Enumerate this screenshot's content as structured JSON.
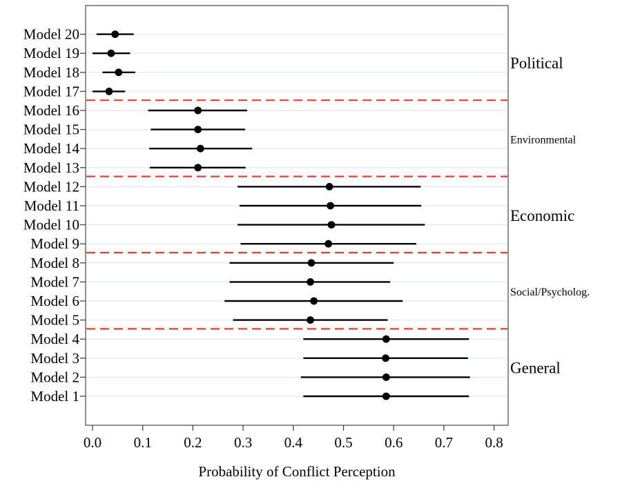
{
  "chart_data": {
    "type": "forest",
    "xlabel": "Probability of Conflict Perception",
    "ylabel": "",
    "title": "",
    "xlim": [
      -0.02,
      0.82
    ],
    "xticks": [
      "0.0",
      "0.1",
      "0.2",
      "0.3",
      "0.4",
      "0.5",
      "0.6",
      "0.7",
      "0.8"
    ],
    "xtick_values": [
      0.0,
      0.1,
      0.2,
      0.3,
      0.4,
      0.5,
      0.6,
      0.7,
      0.8
    ],
    "grid": "horizontal",
    "models": [
      {
        "label": "Model 1",
        "estimate": 0.585,
        "low": 0.42,
        "high": 0.75
      },
      {
        "label": "Model 2",
        "estimate": 0.585,
        "low": 0.415,
        "high": 0.752
      },
      {
        "label": "Model 3",
        "estimate": 0.584,
        "low": 0.42,
        "high": 0.748
      },
      {
        "label": "Model 4",
        "estimate": 0.585,
        "low": 0.42,
        "high": 0.75
      },
      {
        "label": "Model 5",
        "estimate": 0.434,
        "low": 0.28,
        "high": 0.588
      },
      {
        "label": "Model 6",
        "estimate": 0.441,
        "low": 0.263,
        "high": 0.618
      },
      {
        "label": "Model 7",
        "estimate": 0.434,
        "low": 0.273,
        "high": 0.593
      },
      {
        "label": "Model 8",
        "estimate": 0.436,
        "low": 0.273,
        "high": 0.6
      },
      {
        "label": "Model 9",
        "estimate": 0.47,
        "low": 0.295,
        "high": 0.645
      },
      {
        "label": "Model 10",
        "estimate": 0.476,
        "low": 0.289,
        "high": 0.662
      },
      {
        "label": "Model 11",
        "estimate": 0.474,
        "low": 0.293,
        "high": 0.655
      },
      {
        "label": "Model 12",
        "estimate": 0.472,
        "low": 0.289,
        "high": 0.654
      },
      {
        "label": "Model 13",
        "estimate": 0.21,
        "low": 0.114,
        "high": 0.305
      },
      {
        "label": "Model 14",
        "estimate": 0.215,
        "low": 0.113,
        "high": 0.318
      },
      {
        "label": "Model 15",
        "estimate": 0.21,
        "low": 0.116,
        "high": 0.304
      },
      {
        "label": "Model 16",
        "estimate": 0.21,
        "low": 0.111,
        "high": 0.308
      },
      {
        "label": "Model 17",
        "estimate": 0.033,
        "low": 0.0,
        "high": 0.065
      },
      {
        "label": "Model 18",
        "estimate": 0.052,
        "low": 0.02,
        "high": 0.085
      },
      {
        "label": "Model 19",
        "estimate": 0.037,
        "low": 0.0,
        "high": 0.075
      },
      {
        "label": "Model 20",
        "estimate": 0.045,
        "low": 0.008,
        "high": 0.082
      }
    ],
    "groups": [
      {
        "name": "General",
        "models": [
          1,
          2,
          3,
          4
        ],
        "size": "large"
      },
      {
        "name": "Social/Psycholog.",
        "models": [
          5,
          6,
          7,
          8
        ],
        "size": "small"
      },
      {
        "name": "Economic",
        "models": [
          9,
          10,
          11,
          12
        ],
        "size": "large"
      },
      {
        "name": "Environmental",
        "models": [
          13,
          14,
          15,
          16
        ],
        "size": "small"
      },
      {
        "name": "Political",
        "models": [
          17,
          18,
          19,
          20
        ],
        "size": "large"
      }
    ],
    "separator_color": "#ee3b2c",
    "gridline_color": "#e3ecef",
    "point_color": "#000000"
  }
}
